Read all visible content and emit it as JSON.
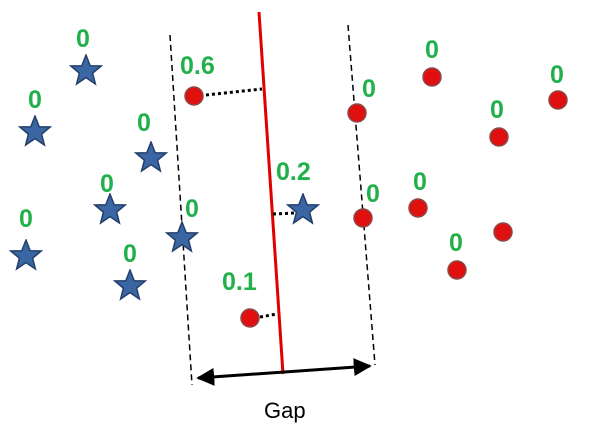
{
  "colors": {
    "star_fill": "#3a66a3",
    "star_stroke": "#243f6b",
    "dot_fill": "#e01010",
    "dot_stroke": "#8b4a4a",
    "label": "#22b04b",
    "separator": "#e00000",
    "margin_line": "#000000"
  },
  "icons": {
    "star": "star-icon",
    "dot": "circle-icon"
  },
  "labels": {
    "star_zeros": [
      "0",
      "0",
      "0",
      "0",
      "0",
      "0",
      "0"
    ],
    "dot_zeros": [
      "0",
      "0",
      "0",
      "0",
      "0",
      "0",
      "0"
    ],
    "dot_upper": "0.6",
    "star_margin": "0.2",
    "dot_lower": "0.1"
  },
  "gap_label": "Gap"
}
